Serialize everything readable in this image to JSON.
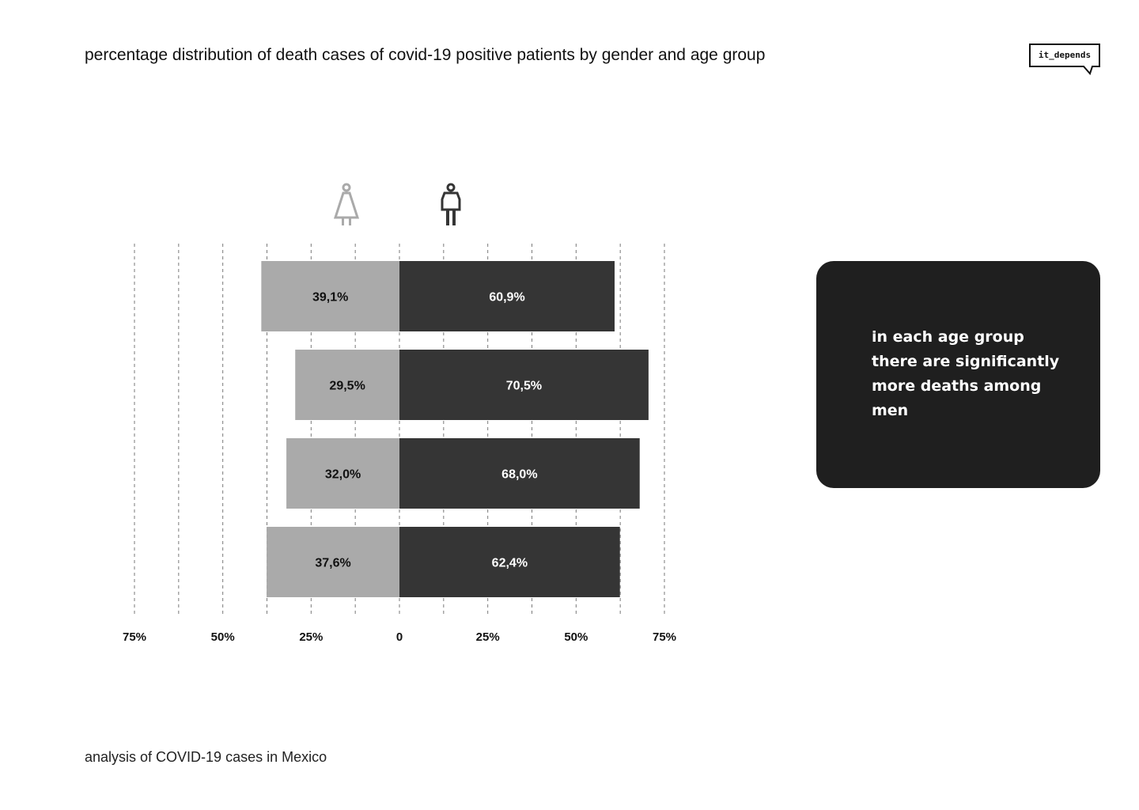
{
  "title": "percentage distribution of death cases of covid-19 positive patients by gender and age group",
  "logo": {
    "text": "it_depends"
  },
  "callout": {
    "text": "in each age group there are significantly more deaths among men"
  },
  "footer": {
    "text": "analysis of COVID-19 cases in Mexico"
  },
  "colors": {
    "women": "#aaaaaa",
    "men": "#353535",
    "callout_bg": "#1f1f1f",
    "gridline": "#7a7a7a"
  },
  "icons": {
    "women": "woman-icon",
    "men": "man-icon"
  },
  "chart_data": {
    "type": "bar",
    "orientation": "horizontal-diverging",
    "series": [
      {
        "name": "women",
        "values": [
          39.1,
          29.5,
          32.0,
          37.6
        ],
        "labels": [
          "39,1%",
          "29,5%",
          "32,0%",
          "37,6%"
        ]
      },
      {
        "name": "men",
        "values": [
          60.9,
          70.5,
          68.0,
          62.4
        ],
        "labels": [
          "60,9%",
          "70,5%",
          "68,0%",
          "62,4%"
        ]
      }
    ],
    "xlim": [
      -75,
      75
    ],
    "ticks": [
      {
        "value": -75,
        "label": "75%"
      },
      {
        "value": -50,
        "label": "50%"
      },
      {
        "value": -25,
        "label": "25%"
      },
      {
        "value": 0,
        "label": "0"
      },
      {
        "value": 25,
        "label": "25%"
      },
      {
        "value": 50,
        "label": "50%"
      },
      {
        "value": 75,
        "label": "75%"
      }
    ],
    "gridlines": [
      -75,
      -62.5,
      -50,
      -37.5,
      -25,
      -12.5,
      0,
      12.5,
      25,
      37.5,
      50,
      62.5,
      75
    ],
    "grid": "dashed vertical"
  }
}
